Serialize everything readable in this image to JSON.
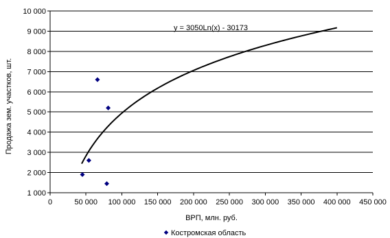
{
  "chart_data": {
    "type": "scatter",
    "xlabel": "ВРП, млн. руб.",
    "ylabel": "Продажа зем. участков, шт.",
    "xlim": [
      0,
      450000
    ],
    "ylim": [
      1000,
      10000
    ],
    "x_tick_labels": [
      "0",
      "50 000",
      "100 000",
      "150 000",
      "200 000",
      "250 000",
      "300 000",
      "350 000",
      "400 000",
      "450 000"
    ],
    "y_tick_labels": [
      "1 000",
      "2 000",
      "3 000",
      "4 000",
      "5 000",
      "6 000",
      "7 000",
      "8 000",
      "9 000",
      "10 000"
    ],
    "x_ticks": [
      0,
      50000,
      100000,
      150000,
      200000,
      250000,
      300000,
      350000,
      400000,
      450000
    ],
    "y_ticks": [
      1000,
      2000,
      3000,
      4000,
      5000,
      6000,
      7000,
      8000,
      9000,
      10000
    ],
    "grid": "horizontal",
    "legend_position": "bottom",
    "series": [
      {
        "name": "Костромская область",
        "marker": "diamond",
        "color": "#000080",
        "points": [
          {
            "x": 45000,
            "y": 1900
          },
          {
            "x": 54000,
            "y": 2600
          },
          {
            "x": 66000,
            "y": 6600
          },
          {
            "x": 79000,
            "y": 1450
          },
          {
            "x": 81000,
            "y": 5200
          }
        ]
      }
    ],
    "trendline": {
      "type": "logarithmic",
      "a": 3050,
      "b": -30173,
      "x_range": [
        44000,
        400000
      ],
      "color": "#000000",
      "equation_label": "y = 3050Ln(x) - 30173"
    }
  }
}
